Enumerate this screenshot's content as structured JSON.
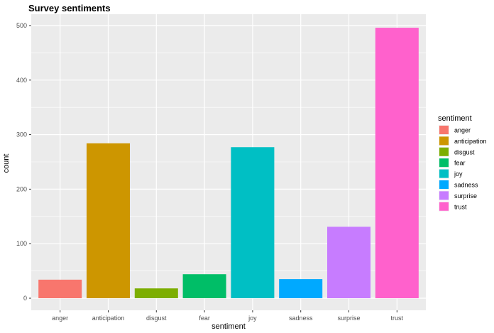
{
  "chart_data": {
    "type": "bar",
    "title": "Survey sentiments",
    "xlabel": "sentiment",
    "ylabel": "count",
    "categories": [
      "anger",
      "anticipation",
      "disgust",
      "fear",
      "joy",
      "sadness",
      "surprise",
      "trust"
    ],
    "values": [
      34,
      284,
      18,
      44,
      277,
      35,
      131,
      496
    ],
    "colors": [
      "#F8766D",
      "#CD9600",
      "#7CAE00",
      "#00BE67",
      "#00BFC4",
      "#00A9FF",
      "#C77CFF",
      "#FF61CC"
    ],
    "ylim": [
      0,
      520
    ],
    "yticks": [
      0,
      100,
      200,
      300,
      400,
      500
    ],
    "grid": true,
    "background": "#EBEBEB",
    "legend": {
      "title": "sentiment",
      "position": "right"
    }
  }
}
